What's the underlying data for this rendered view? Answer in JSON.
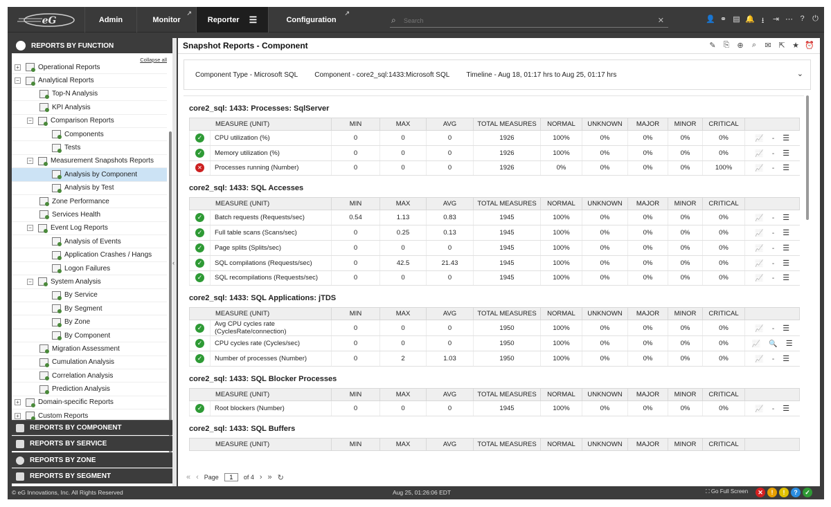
{
  "nav": {
    "tabs": [
      {
        "label": "Admin"
      },
      {
        "label": "Monitor"
      },
      {
        "label": "Reporter"
      },
      {
        "label": "Configuration"
      }
    ],
    "search_placeholder": "Search"
  },
  "sidebar": {
    "header": "REPORTS BY FUNCTION",
    "collapse_all": "Collapse all",
    "tree": [
      "Operational Reports",
      "Analytical Reports",
      "Top-N Analysis",
      "KPI Analysis",
      "Comparison Reports",
      "Components",
      "Tests",
      "Measurement Snapshots Reports",
      "Analysis by Component",
      "Analysis by Test",
      "Zone Performance",
      "Services Health",
      "Event Log Reports",
      "Analysis of Events",
      "Application Crashes / Hangs",
      "Logon Failures",
      "System Analysis",
      "By Service",
      "By Segment",
      "By Zone",
      "By Component",
      "Migration Assessment",
      "Cumulation Analysis",
      "Correlation Analysis",
      "Prediction Analysis",
      "Domain-specific Reports",
      "Custom Reports"
    ],
    "bottom": [
      "REPORTS BY COMPONENT",
      "REPORTS BY SERVICE",
      "REPORTS BY ZONE",
      "REPORTS BY SEGMENT"
    ]
  },
  "main": {
    "title": "Snapshot Reports - Component",
    "info": {
      "component_type": "Component Type - Microsoft SQL",
      "component": "Component - core2_sql:1433:Microsoft SQL",
      "timeline": "Timeline - Aug 18, 01:17 hrs to Aug 25, 01:17 hrs"
    },
    "headers": [
      "MEASURE (UNIT)",
      "MIN",
      "MAX",
      "AVG",
      "TOTAL MEASURES",
      "NORMAL",
      "UNKNOWN",
      "MAJOR",
      "MINOR",
      "CRITICAL"
    ],
    "sections": [
      {
        "title": "core2_sql: 1433: Processes: SqlServer",
        "rows": [
          {
            "status": "ok",
            "measure": "CPU utilization (%)",
            "min": "0",
            "max": "0",
            "avg": "0",
            "total": "1926",
            "normal": "100%",
            "unknown": "0%",
            "major": "0%",
            "minor": "0%",
            "critical": "0%",
            "mid": "-"
          },
          {
            "status": "ok",
            "measure": "Memory utilization (%)",
            "min": "0",
            "max": "0",
            "avg": "0",
            "total": "1926",
            "normal": "100%",
            "unknown": "0%",
            "major": "0%",
            "minor": "0%",
            "critical": "0%",
            "mid": "-"
          },
          {
            "status": "bad",
            "measure": "Processes running (Number)",
            "min": "0",
            "max": "0",
            "avg": "0",
            "total": "1926",
            "normal": "0%",
            "unknown": "0%",
            "major": "0%",
            "minor": "0%",
            "critical": "100%",
            "mid": "-"
          }
        ]
      },
      {
        "title": "core2_sql: 1433: SQL Accesses",
        "rows": [
          {
            "status": "ok",
            "measure": "Batch requests (Requests/sec)",
            "min": "0.54",
            "max": "1.13",
            "avg": "0.83",
            "total": "1945",
            "normal": "100%",
            "unknown": "0%",
            "major": "0%",
            "minor": "0%",
            "critical": "0%",
            "mid": "-"
          },
          {
            "status": "ok",
            "measure": "Full table scans (Scans/sec)",
            "min": "0",
            "max": "0.25",
            "avg": "0.13",
            "total": "1945",
            "normal": "100%",
            "unknown": "0%",
            "major": "0%",
            "minor": "0%",
            "critical": "0%",
            "mid": "-"
          },
          {
            "status": "ok",
            "measure": "Page splits (Splits/sec)",
            "min": "0",
            "max": "0",
            "avg": "0",
            "total": "1945",
            "normal": "100%",
            "unknown": "0%",
            "major": "0%",
            "minor": "0%",
            "critical": "0%",
            "mid": "-"
          },
          {
            "status": "ok",
            "measure": "SQL compilations (Requests/sec)",
            "min": "0",
            "max": "42.5",
            "avg": "21.43",
            "total": "1945",
            "normal": "100%",
            "unknown": "0%",
            "major": "0%",
            "minor": "0%",
            "critical": "0%",
            "mid": "-"
          },
          {
            "status": "ok",
            "measure": "SQL recompilations (Requests/sec)",
            "min": "0",
            "max": "0",
            "avg": "0",
            "total": "1945",
            "normal": "100%",
            "unknown": "0%",
            "major": "0%",
            "minor": "0%",
            "critical": "0%",
            "mid": "-"
          }
        ]
      },
      {
        "title": "core2_sql: 1433: SQL Applications: jTDS",
        "rows": [
          {
            "status": "ok",
            "measure": "Avg CPU cycles rate (CyclesRate/connection)",
            "min": "0",
            "max": "0",
            "avg": "0",
            "total": "1950",
            "normal": "100%",
            "unknown": "0%",
            "major": "0%",
            "minor": "0%",
            "critical": "0%",
            "mid": "-"
          },
          {
            "status": "ok",
            "measure": "CPU cycles rate (Cycles/sec)",
            "min": "0",
            "max": "0",
            "avg": "0",
            "total": "1950",
            "normal": "100%",
            "unknown": "0%",
            "major": "0%",
            "minor": "0%",
            "critical": "0%",
            "mid": "🔍"
          },
          {
            "status": "ok",
            "measure": "Number of processes (Number)",
            "min": "0",
            "max": "2",
            "avg": "1.03",
            "total": "1950",
            "normal": "100%",
            "unknown": "0%",
            "major": "0%",
            "minor": "0%",
            "critical": "0%",
            "mid": "-"
          }
        ]
      },
      {
        "title": "core2_sql: 1433: SQL Blocker Processes",
        "rows": [
          {
            "status": "ok",
            "measure": "Root blockers (Number)",
            "min": "0",
            "max": "0",
            "avg": "0",
            "total": "1945",
            "normal": "100%",
            "unknown": "0%",
            "major": "0%",
            "minor": "0%",
            "critical": "0%",
            "mid": "-"
          }
        ]
      },
      {
        "title": "core2_sql: 1433: SQL Buffers",
        "rows": []
      }
    ],
    "pager": {
      "page_label": "Page",
      "page_value": "1",
      "of_label": "of 4"
    }
  },
  "status": {
    "copyright": "© eG Innovations, Inc. All Rights Reserved",
    "time": "Aug 25, 01:26:06 EDT",
    "fullscreen": "Go Full Screen",
    "alert_colors": [
      "#d42020",
      "#e8a000",
      "#e0c000",
      "#2b8de0",
      "#2e9a35"
    ]
  }
}
